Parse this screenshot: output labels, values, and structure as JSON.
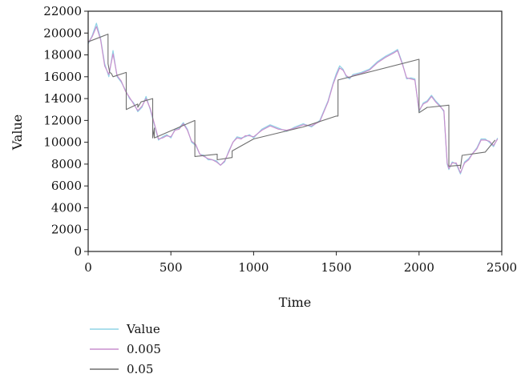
{
  "chart_data": {
    "type": "line",
    "xlabel": "Time",
    "ylabel": "Value",
    "xlim": [
      0,
      2500
    ],
    "ylim": [
      0,
      22000
    ],
    "xticks": [
      0,
      500,
      1000,
      1500,
      2000,
      2500
    ],
    "yticks": [
      0,
      2000,
      4000,
      6000,
      8000,
      10000,
      12000,
      14000,
      16000,
      18000,
      20000,
      22000
    ],
    "xtick_labels": [
      "0",
      "500",
      "1000",
      "1500",
      "2000",
      "2500"
    ],
    "ytick_labels": [
      "0",
      "2000",
      "4000",
      "6000",
      "8000",
      "10000",
      "12000",
      "14000",
      "16000",
      "18000",
      "20000",
      "22000"
    ],
    "grid": false,
    "legend_position": "bottom-left",
    "series": [
      {
        "name": "Value",
        "color": "#8fd3e6",
        "x": [
          0,
          25,
          50,
          75,
          100,
          125,
          150,
          175,
          200,
          225,
          250,
          275,
          300,
          325,
          350,
          375,
          400,
          425,
          450,
          475,
          500,
          525,
          550,
          575,
          600,
          625,
          650,
          675,
          700,
          725,
          750,
          775,
          800,
          825,
          850,
          875,
          900,
          925,
          950,
          975,
          1000,
          1050,
          1100,
          1150,
          1200,
          1250,
          1300,
          1350,
          1400,
          1450,
          1480,
          1500,
          1520,
          1540,
          1560,
          1580,
          1600,
          1650,
          1700,
          1750,
          1800,
          1850,
          1870,
          1900,
          1925,
          1950,
          1975,
          2000,
          2025,
          2050,
          2075,
          2100,
          2125,
          2150,
          2170,
          2180,
          2200,
          2225,
          2250,
          2275,
          2300,
          2325,
          2350,
          2375,
          2400,
          2425,
          2450,
          2475
        ],
        "y": [
          19000,
          19800,
          20900,
          19500,
          17200,
          16000,
          18400,
          16000,
          15500,
          14800,
          14000,
          13600,
          12800,
          13200,
          14200,
          13000,
          11600,
          10200,
          10500,
          10700,
          10400,
          11200,
          11300,
          11800,
          11200,
          10000,
          9700,
          8900,
          8800,
          8400,
          8400,
          8300,
          7900,
          8200,
          9200,
          10000,
          10500,
          10400,
          10500,
          10700,
          10400,
          11200,
          11600,
          11300,
          11000,
          11400,
          11700,
          11400,
          12000,
          13800,
          15400,
          16300,
          17000,
          16700,
          16000,
          15800,
          16200,
          16400,
          16700,
          17400,
          17900,
          18300,
          18500,
          17200,
          15800,
          15900,
          15800,
          12800,
          13600,
          13800,
          14300,
          13800,
          13400,
          12800,
          8000,
          7500,
          8200,
          8000,
          7100,
          8200,
          8500,
          9000,
          9500,
          10300,
          10300,
          10000,
          9600,
          10400
        ]
      },
      {
        "name": "0.005",
        "color": "#c98fcd",
        "x": [
          0,
          25,
          50,
          75,
          100,
          125,
          150,
          175,
          200,
          225,
          250,
          275,
          300,
          325,
          350,
          375,
          400,
          425,
          450,
          475,
          500,
          525,
          550,
          575,
          600,
          625,
          650,
          675,
          700,
          725,
          750,
          775,
          800,
          825,
          850,
          875,
          900,
          925,
          950,
          975,
          1000,
          1050,
          1100,
          1150,
          1200,
          1250,
          1300,
          1350,
          1400,
          1450,
          1480,
          1500,
          1520,
          1540,
          1560,
          1580,
          1600,
          1650,
          1700,
          1750,
          1800,
          1850,
          1870,
          1900,
          1925,
          1950,
          1975,
          2000,
          2025,
          2050,
          2075,
          2100,
          2125,
          2150,
          2170,
          2180,
          2200,
          2225,
          2250,
          2275,
          2300,
          2325,
          2350,
          2375,
          2400,
          2425,
          2450,
          2475
        ],
        "y": [
          19100,
          19700,
          20600,
          19400,
          17000,
          16200,
          18100,
          16100,
          15600,
          14700,
          14100,
          13500,
          12900,
          13300,
          14000,
          13100,
          11700,
          10300,
          10400,
          10600,
          10500,
          11100,
          11200,
          11700,
          11100,
          10100,
          9800,
          8900,
          8700,
          8500,
          8400,
          8200,
          7900,
          8300,
          9100,
          10000,
          10400,
          10300,
          10600,
          10600,
          10500,
          11100,
          11500,
          11200,
          11100,
          11300,
          11600,
          11500,
          11900,
          13700,
          15300,
          16100,
          16800,
          16600,
          16100,
          15900,
          16100,
          16300,
          16600,
          17300,
          17800,
          18200,
          18400,
          17100,
          15900,
          15800,
          15700,
          12900,
          13500,
          13700,
          14200,
          13700,
          13300,
          12900,
          8100,
          7600,
          8100,
          8100,
          7200,
          8100,
          8400,
          9000,
          9400,
          10200,
          10200,
          10100,
          9700,
          10300
        ]
      },
      {
        "name": "0.05",
        "color": "#6e6e6e",
        "x": [
          0,
          120,
          120,
          125,
          130,
          140,
          150,
          150,
          230,
          230,
          300,
          300,
          320,
          390,
          390,
          400,
          400,
          645,
          645,
          780,
          780,
          870,
          870,
          1000,
          1300,
          1500,
          1510,
          1510,
          2000,
          2000,
          2050,
          2060,
          2180,
          2180,
          2250,
          2250,
          2260,
          2400,
          2460
        ],
        "y": [
          19200,
          19900,
          17200,
          16800,
          16400,
          16300,
          16000,
          16000,
          16400,
          13000,
          13500,
          13200,
          13700,
          14000,
          10400,
          11300,
          10400,
          12000,
          8700,
          8900,
          8400,
          8600,
          9200,
          10300,
          11400,
          12400,
          12400,
          15700,
          17600,
          12700,
          13200,
          13200,
          13400,
          7800,
          7900,
          7600,
          8800,
          9100,
          10200
        ]
      }
    ]
  }
}
